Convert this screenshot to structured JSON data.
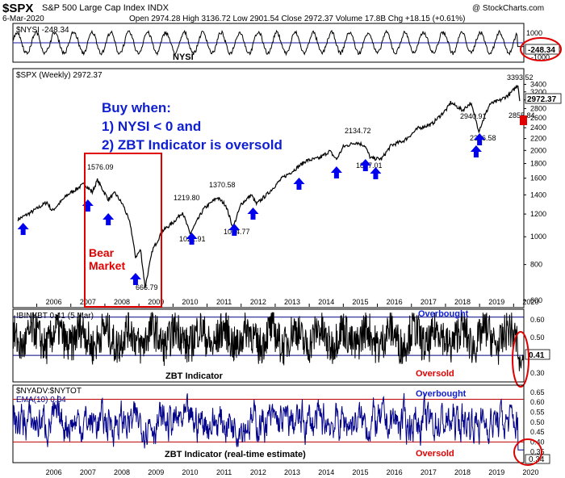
{
  "header": {
    "symbol": "$SPX",
    "name": "S&P 500 Large Cap Index",
    "exchange": "INDX",
    "date": "6-Mar-2020",
    "quote": "Open 2974.28  High 3136.72  Low 2901.54  Close 2972.37  Volume 17.8B  Chg +18.15 (+0.61%)",
    "copyright": "@ StockCharts.com"
  },
  "colors": {
    "price": "#000000",
    "arrow": "#0000ee",
    "annotation_red": "#e00000",
    "annotation_blue": "#1020d0",
    "ema": "#00008b",
    "threshold": "#000080",
    "band": "#c00000"
  },
  "chart_data": [
    {
      "type": "line",
      "panel": "NYSI",
      "legend": "$NYSI -248.34",
      "label": "NYSI",
      "last_value": "-248.34",
      "ylim": [
        -1200,
        1200
      ],
      "tick_labels": [
        "1000",
        "-1000"
      ],
      "zero_line": true
    },
    {
      "type": "line",
      "panel": "SPX weekly",
      "legend": "$SPX (Weekly) 2972.37",
      "last_value": "2972.37",
      "y_scale": "log",
      "ylim": [
        600,
        3500
      ],
      "y_ticks": [
        600,
        800,
        1000,
        1200,
        1400,
        1600,
        1800,
        2000,
        2200,
        2400,
        2600,
        2800,
        3000,
        3200,
        3400
      ],
      "x_tick_labels": [
        "2006",
        "2007",
        "2008",
        "2009",
        "2010",
        "2011",
        "2012",
        "2013",
        "2014",
        "2015",
        "2016",
        "2017",
        "2018",
        "2019",
        "2020"
      ],
      "x": [
        2005.45,
        2005.8,
        2006.3,
        2006.45,
        2006.9,
        2007.4,
        2007.63,
        2007.78,
        2008.1,
        2008.3,
        2008.55,
        2008.75,
        2008.9,
        2009.05,
        2009.18,
        2009.4,
        2009.7,
        2010.0,
        2010.28,
        2010.5,
        2010.9,
        2011.3,
        2011.55,
        2011.76,
        2012.0,
        2012.3,
        2012.45,
        2012.8,
        2013.2,
        2013.5,
        2013.9,
        2014.3,
        2014.6,
        2014.8,
        2015.0,
        2015.38,
        2015.63,
        2015.8,
        2016.12,
        2016.4,
        2016.8,
        2017.2,
        2017.6,
        2018.05,
        2018.15,
        2018.5,
        2018.74,
        2018.98,
        2019.3,
        2019.6,
        2019.9,
        2020.13,
        2020.18
      ],
      "values": [
        1150,
        1210,
        1320,
        1230,
        1400,
        1530,
        1430,
        1576.09,
        1350,
        1420,
        1280,
        1100,
        850,
        900,
        666.79,
        900,
        1050,
        1120,
        1219.8,
        1022.91,
        1250,
        1370.58,
        1290,
        1074.77,
        1300,
        1400,
        1300,
        1420,
        1600,
        1690,
        1840,
        1880,
        1990,
        1860,
        2060,
        2134.72,
        2080,
        1880,
        1867.01,
        2080,
        2170,
        2390,
        2470,
        2800,
        2940.91,
        2760,
        2930,
        2346.58,
        2900,
        2990,
        3150,
        3393.52,
        2972.37
      ],
      "labels": [
        "1576.09",
        "666.79",
        "1219.80",
        "1022.91",
        "1370.58",
        "1074.77",
        "2134.72",
        "1867.01",
        "2940.91",
        "2346.58",
        "3393.52",
        "2855.84",
        "2972.37"
      ],
      "annotations": {
        "buy_rule_title": "Buy when:",
        "buy_rule_1": "1) NYSI < 0 and",
        "buy_rule_2": "2) ZBT Indicator is oversold",
        "bear_line1": "Bear",
        "bear_line2": "Market"
      },
      "buy_signals_x": [
        2005.6,
        2007.5,
        2008.1,
        2008.9,
        2010.55,
        2011.8,
        2012.35,
        2013.7,
        2014.8,
        2015.65,
        2015.95,
        2018.9,
        2019.0
      ]
    },
    {
      "type": "line",
      "panel": "ZBT Indicator",
      "legend": "!BINYBT 0.41 (5 Mar)",
      "label": "ZBT Indicator",
      "last_value": "0.41",
      "ylim": [
        0.26,
        0.65
      ],
      "y_ticks": [
        0.3,
        0.4,
        0.5,
        0.6
      ],
      "thresholds": {
        "overbought": 0.615,
        "oversold": 0.4
      },
      "overbought_label": "Overbought",
      "oversold_label": "Oversold"
    },
    {
      "type": "line",
      "panel": "ZBT real-time estimate",
      "legend": "$NYADV:$NYTOT",
      "legend2": "EMA(10) 0.34",
      "label": "ZBT Indicator (real-time estimate)",
      "last_value": "0.34",
      "ylim": [
        0.3,
        0.67
      ],
      "y_ticks": [
        0.35,
        0.4,
        0.45,
        0.5,
        0.55,
        0.6,
        0.65
      ],
      "thresholds": {
        "overbought": 0.615,
        "oversold": 0.4
      },
      "overbought_label": "Overbought",
      "oversold_label": "Oversold",
      "x_tick_labels": [
        "2006",
        "2007",
        "2008",
        "2009",
        "2010",
        "2011",
        "2012",
        "2013",
        "2014",
        "2015",
        "2016",
        "2017",
        "2018",
        "2019",
        "2020"
      ]
    }
  ]
}
